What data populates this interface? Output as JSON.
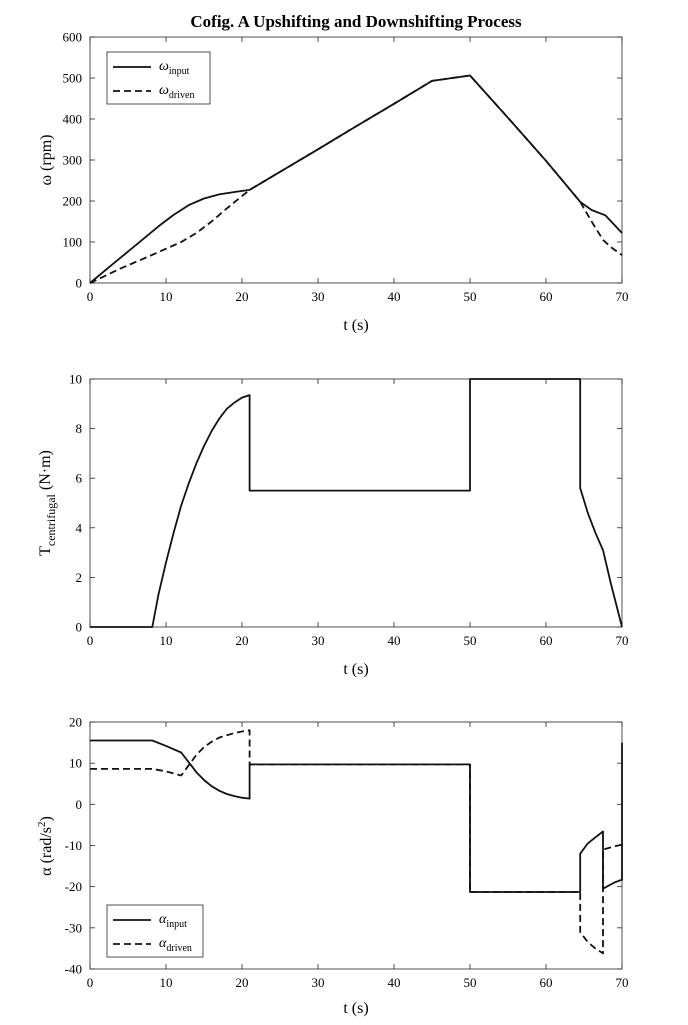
{
  "title": "Cofig. A Upshifting and Downshifting Process",
  "chart_data": [
    {
      "type": "line",
      "xlabel": "t (s)",
      "ylabel": "ω (rpm)",
      "xlim": [
        0,
        70
      ],
      "ylim": [
        0,
        600
      ],
      "xticks": [
        0,
        10,
        20,
        30,
        40,
        50,
        60,
        70
      ],
      "yticks": [
        0,
        100,
        200,
        300,
        400,
        500,
        600
      ],
      "legend_position": "top-left",
      "series": [
        {
          "name": "ω_input",
          "legend_main": "ω",
          "legend_sub": "input",
          "style": "solid",
          "x": [
            0,
            3,
            6,
            9,
            11,
            13,
            15,
            17,
            19,
            21,
            25,
            30,
            35,
            40,
            45,
            50,
            55,
            60,
            64.5,
            66,
            67.8,
            70
          ],
          "y": [
            0,
            46,
            92,
            138,
            166,
            190,
            206,
            216,
            222,
            227,
            271,
            326,
            382,
            437,
            493,
            506,
            403,
            298,
            198,
            178,
            165,
            122
          ]
        },
        {
          "name": "ω_driven",
          "legend_main": "ω",
          "legend_sub": "driven",
          "style": "dashed",
          "x": [
            0,
            4,
            8,
            12,
            14,
            16,
            18,
            21,
            25,
            30,
            35,
            40,
            45,
            50,
            55,
            60,
            64.5,
            66,
            67.5,
            68.5,
            70
          ],
          "y": [
            0,
            35,
            67,
            100,
            122,
            150,
            182,
            227,
            271,
            326,
            382,
            437,
            493,
            506,
            403,
            298,
            198,
            150,
            105,
            88,
            68
          ]
        }
      ]
    },
    {
      "type": "line",
      "xlabel": "t (s)",
      "ylabel_main": "T",
      "ylabel_sub": "centrifugal",
      "ylabel_unit": " (N·m)",
      "xlim": [
        0,
        70
      ],
      "ylim": [
        0,
        10
      ],
      "xticks": [
        0,
        10,
        20,
        30,
        40,
        50,
        60,
        70
      ],
      "yticks": [
        0,
        2,
        4,
        6,
        8,
        10
      ],
      "series": [
        {
          "style": "solid",
          "x": [
            0,
            8.2,
            9,
            10,
            11,
            12,
            13,
            14,
            15,
            16,
            17,
            18,
            19,
            20,
            21,
            21,
            30,
            40,
            50,
            50,
            55,
            60,
            64.5,
            64.5,
            65.5,
            66.5,
            67.5,
            68.5,
            70
          ],
          "y": [
            0,
            0,
            1.3,
            2.6,
            3.8,
            4.9,
            5.8,
            6.6,
            7.3,
            7.9,
            8.4,
            8.8,
            9.05,
            9.25,
            9.35,
            5.5,
            5.5,
            5.5,
            5.5,
            10,
            10,
            10,
            10,
            5.6,
            4.6,
            3.8,
            3.1,
            1.8,
            0
          ]
        }
      ]
    },
    {
      "type": "line",
      "xlabel": "t (s)",
      "ylabel_main": "α (rad/s",
      "ylabel_sup": "2",
      "ylabel_tail": ")",
      "xlim": [
        0,
        70
      ],
      "ylim": [
        -40,
        20
      ],
      "xticks": [
        0,
        10,
        20,
        30,
        40,
        50,
        60,
        70
      ],
      "yticks": [
        -40,
        -30,
        -20,
        -10,
        0,
        10,
        20
      ],
      "legend_position": "bottom-left",
      "series": [
        {
          "name": "α_input",
          "legend_main": "α",
          "legend_sub": "input",
          "style": "solid",
          "x": [
            0,
            8.2,
            10,
            12,
            13,
            14,
            15,
            16,
            17,
            18,
            19,
            20,
            21,
            21,
            30,
            40,
            50,
            50,
            55,
            60,
            64.5,
            64.5,
            65.5,
            66.5,
            67.5,
            67.5,
            69,
            70,
            70
          ],
          "y": [
            15.5,
            15.5,
            14.2,
            12.6,
            10.2,
            7.8,
            5.9,
            4.4,
            3.3,
            2.5,
            2,
            1.6,
            1.4,
            9.7,
            9.7,
            9.7,
            9.7,
            -21.3,
            -21.3,
            -21.3,
            -21.3,
            -12,
            -9.5,
            -8,
            -6.6,
            -20.5,
            -19,
            -18.3,
            15
          ]
        },
        {
          "name": "α_driven",
          "legend_main": "α",
          "legend_sub": "driven",
          "style": "dashed",
          "x": [
            0,
            8.2,
            10,
            12,
            13,
            14,
            15,
            16,
            17,
            18,
            19,
            20,
            21,
            21,
            30,
            40,
            50,
            50,
            55,
            60,
            64.5,
            64.5,
            65.5,
            66.5,
            67.5,
            67.5,
            69,
            70
          ],
          "y": [
            8.6,
            8.6,
            8,
            7,
            9.5,
            12,
            13.9,
            15.2,
            16.2,
            16.8,
            17.3,
            17.7,
            18,
            9.7,
            9.7,
            9.7,
            9.7,
            -21.3,
            -21.3,
            -21.3,
            -21.3,
            -31,
            -33.5,
            -35,
            -36.2,
            -11,
            -10.2,
            -9.8
          ]
        }
      ]
    }
  ]
}
